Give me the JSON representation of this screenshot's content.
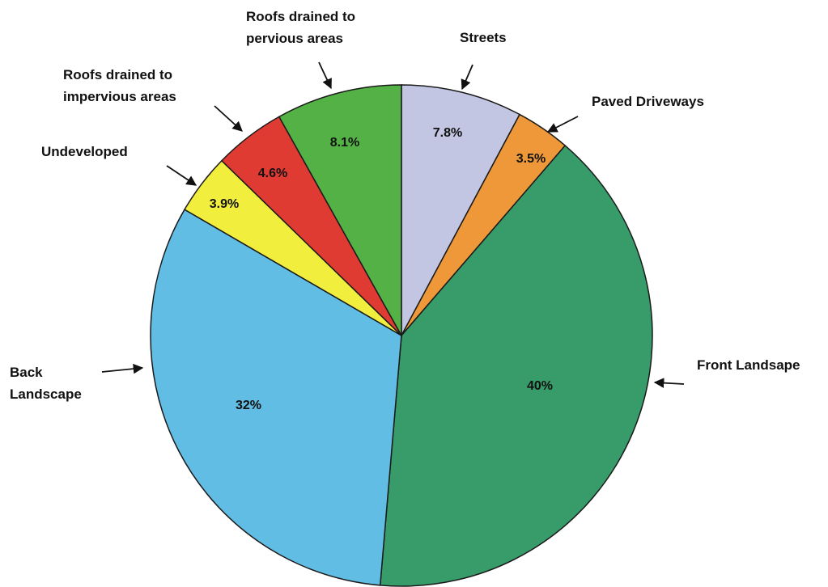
{
  "chart_data": {
    "type": "pie",
    "title": "",
    "slices": [
      {
        "label": "Streets",
        "value": 7.8,
        "value_label": "7.8%",
        "color": "#c2c6e2"
      },
      {
        "label": "Paved Driveways",
        "value": 3.5,
        "value_label": "3.5%",
        "color": "#ee9839"
      },
      {
        "label": "Front Landsape",
        "value": 40,
        "value_label": "40%",
        "color": "#379c69"
      },
      {
        "label": "Back Landscape",
        "value": 32,
        "value_label": "32%",
        "color": "#61bde4"
      },
      {
        "label": "Undeveloped",
        "value": 3.9,
        "value_label": "3.9%",
        "color": "#f1ee3e"
      },
      {
        "label": "Roofs drained to impervious areas",
        "value": 4.6,
        "value_label": "4.6%",
        "color": "#e03b33"
      },
      {
        "label": "Roofs drained to pervious areas",
        "value": 8.1,
        "value_label": "8.1%",
        "color": "#54b146"
      }
    ],
    "start_angle": "top",
    "direction": "clockwise",
    "legend": "none"
  }
}
